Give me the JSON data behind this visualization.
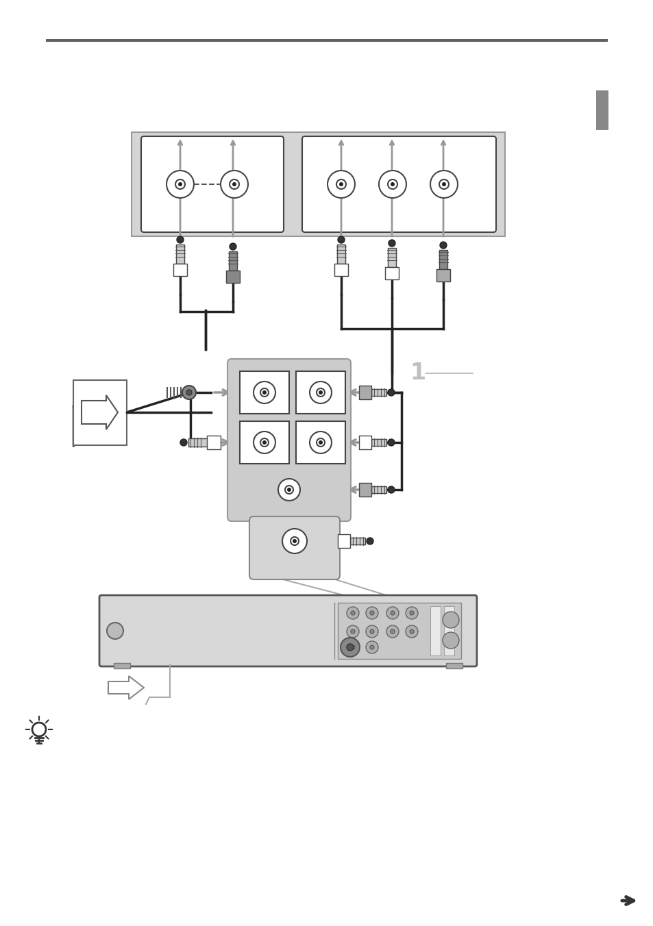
{
  "bg_color": "#ffffff",
  "gray_panel": "#d8d8d8",
  "med_gray": "#c0c0c0",
  "light_gray": "#e0e0e0",
  "dark": "#222222",
  "mid": "#666666",
  "arrow_gray": "#999999",
  "tab_color": "#888888"
}
